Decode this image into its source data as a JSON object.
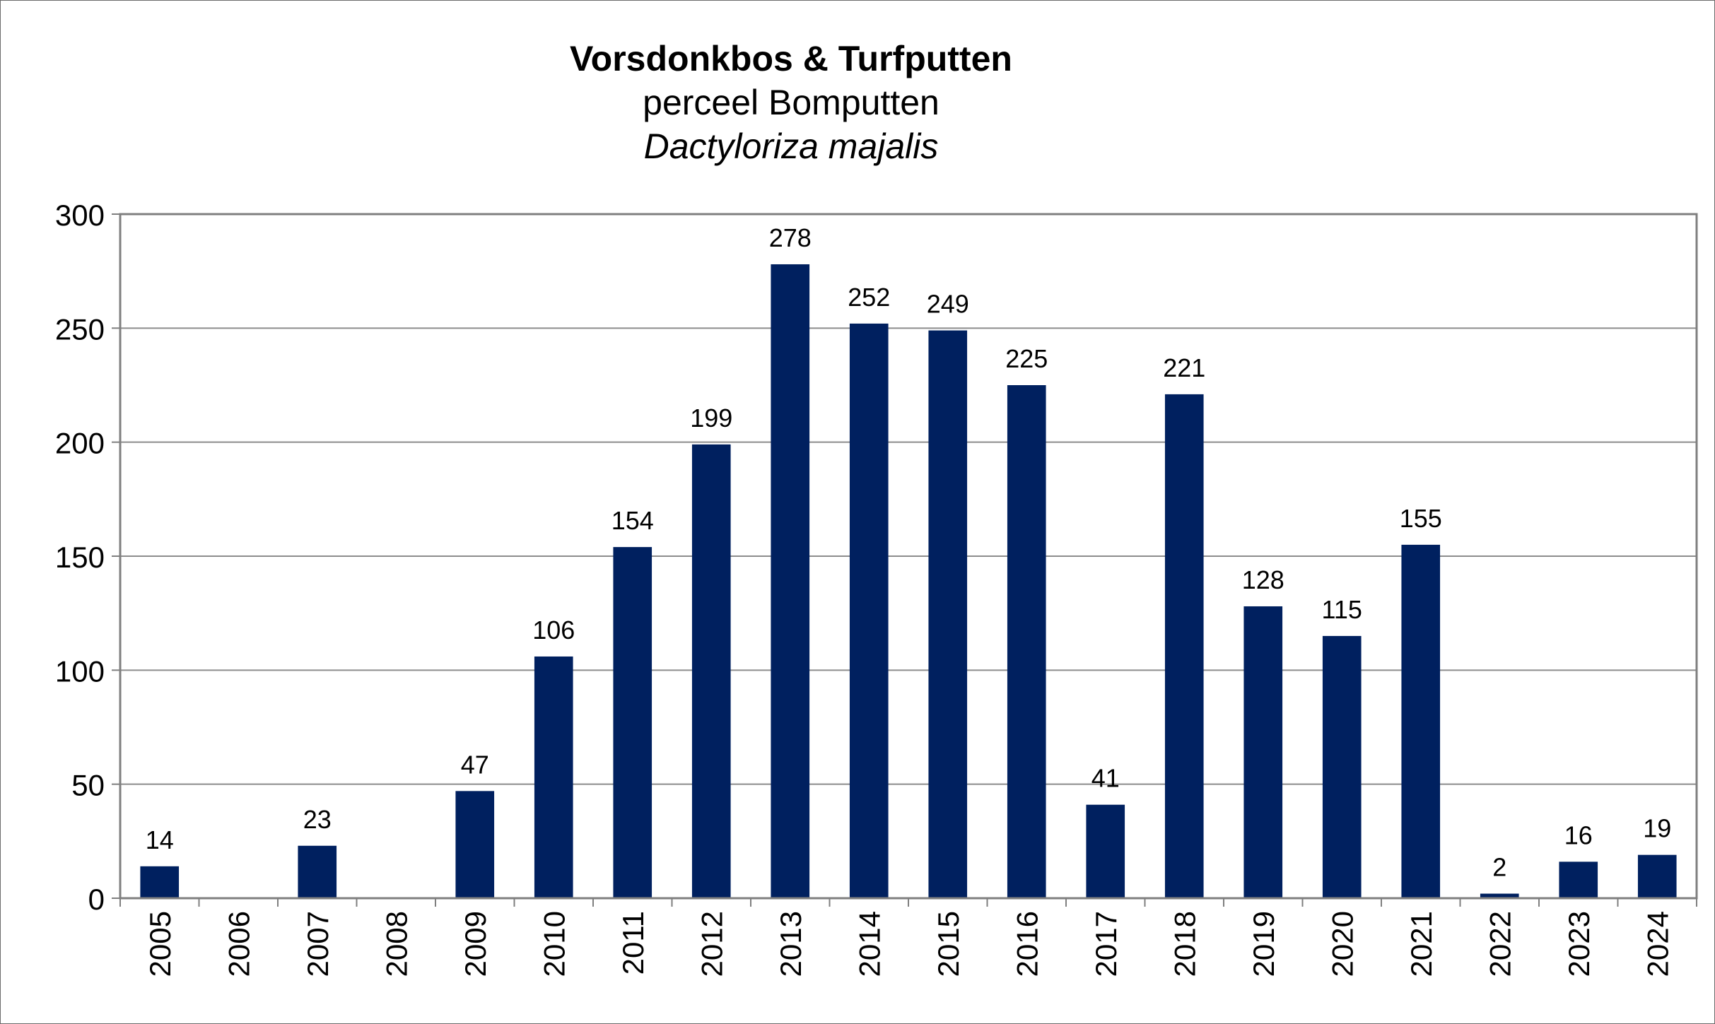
{
  "chart_data": {
    "type": "bar",
    "title": "Vorsdonkbos & Turfputten",
    "subtitle": "perceel Bomputten",
    "subtitle2": "Dactyloriza majalis",
    "xlabel": "",
    "ylabel": "",
    "categories": [
      "2005",
      "2006",
      "2007",
      "2008",
      "2009",
      "2010",
      "2011",
      "2012",
      "2013",
      "2014",
      "2015",
      "2016",
      "2017",
      "2018",
      "2019",
      "2020",
      "2021",
      "2022",
      "2023",
      "2024"
    ],
    "values": [
      14,
      0,
      23,
      0,
      47,
      106,
      154,
      199,
      278,
      252,
      249,
      225,
      41,
      221,
      128,
      115,
      155,
      2,
      16,
      19
    ],
    "data_labels": [
      "14",
      "",
      "23",
      "",
      "47",
      "106",
      "154",
      "199",
      "278",
      "252",
      "249",
      "225",
      "41",
      "221",
      "128",
      "115",
      "155",
      "2",
      "16",
      "19"
    ],
    "ylim": [
      0,
      300
    ],
    "yticks": [
      0,
      50,
      100,
      150,
      200,
      250,
      300
    ],
    "grid": true,
    "legend": "none",
    "bar_color": "#00205f",
    "grid_color": "#8c8c8c",
    "axis_color": "#7f7f7f"
  }
}
